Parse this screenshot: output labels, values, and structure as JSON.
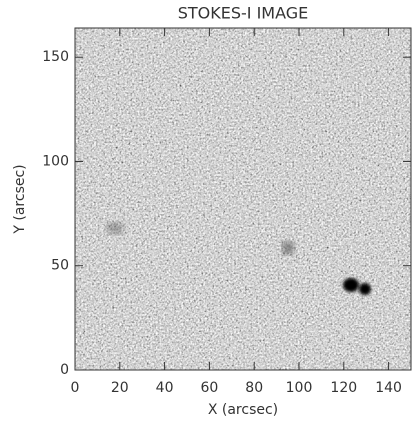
{
  "chart_data": {
    "type": "image",
    "title": "STOKES-I IMAGE",
    "x_label": "X (arcsec)",
    "y_label": "Y (arcsec)",
    "xlim": [
      0,
      150
    ],
    "ylim": [
      0,
      164
    ],
    "xticks": [
      0,
      20,
      40,
      60,
      80,
      100,
      120,
      140
    ],
    "yticks": [
      0,
      50,
      100,
      150
    ]
  }
}
